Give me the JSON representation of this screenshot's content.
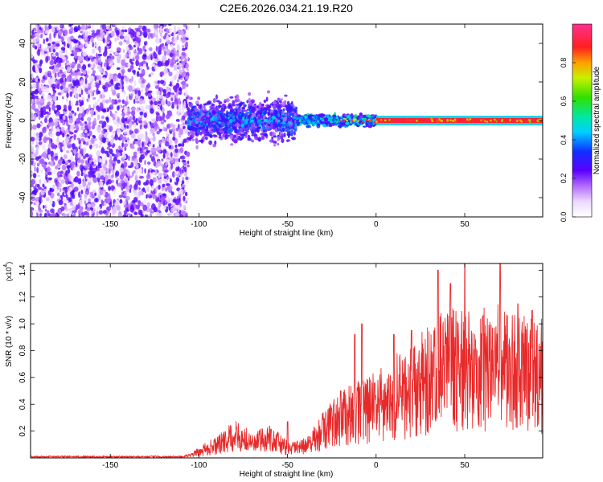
{
  "figure_title": "C2E6.2026.034.21.19.R20",
  "colorbar": {
    "label": "Normalized spectral amplitude",
    "ticks": [
      "0.0",
      "0.2",
      "0.4",
      "0.6",
      "0.8"
    ]
  },
  "chart_data": [
    {
      "type": "heatmap",
      "title": "C2E6.2026.034.21.19.R20",
      "xlabel": "Height of straight line (km)",
      "ylabel": "Frequency (Hz)",
      "xlim": [
        -195,
        94
      ],
      "ylim": [
        -50,
        50
      ],
      "xticks": [
        "-150",
        "-100",
        "-50",
        "0",
        "50"
      ],
      "yticks": [
        "-40",
        "-20",
        "0",
        "20",
        "40"
      ],
      "zlabel": "Normalized spectral amplitude",
      "zlim": [
        0,
        1
      ],
      "description_regions": [
        {
          "x_range": [
            -195,
            -106
          ],
          "y_range": [
            -50,
            50
          ],
          "amplitude": 0.12
        },
        {
          "x_range": [
            -106,
            -45
          ],
          "y_range": [
            -12,
            10
          ],
          "amplitude": 0.3
        },
        {
          "x_range": [
            -45,
            0
          ],
          "y_range": [
            -4,
            4
          ],
          "amplitude": 0.45
        },
        {
          "x_range": [
            0,
            94
          ],
          "y_range": [
            -1.5,
            1.5
          ],
          "amplitude": 0.98
        }
      ]
    },
    {
      "type": "line",
      "xlabel": "Height of straight line (km)",
      "ylabel": "SNR (10 * v/v)",
      "y_scale_label": "(x10",
      "y_scale_exp": "4",
      "xlim": [
        -195,
        94
      ],
      "ylim": [
        0,
        1.45
      ],
      "xticks": [
        "-150",
        "-100",
        "-50",
        "0",
        "50"
      ],
      "yticks": [
        "0.2",
        "0.4",
        "0.6",
        "0.8",
        "1.0",
        "1.2",
        "1.4"
      ],
      "series": [
        {
          "name": "SNR",
          "color": "#e8292a",
          "x": [
            -195,
            -180,
            -160,
            -140,
            -120,
            -110,
            -105,
            -100,
            -95,
            -90,
            -85,
            -80,
            -75,
            -70,
            -65,
            -60,
            -55,
            -50,
            -45,
            -40,
            -35,
            -30,
            -25,
            -20,
            -15,
            -10,
            -5,
            0,
            5,
            10,
            15,
            20,
            25,
            30,
            35,
            40,
            45,
            50,
            55,
            60,
            65,
            70,
            75,
            80,
            85,
            90,
            94
          ],
          "values": [
            0.01,
            0.01,
            0.01,
            0.01,
            0.01,
            0.01,
            0.02,
            0.05,
            0.08,
            0.1,
            0.14,
            0.18,
            0.16,
            0.12,
            0.14,
            0.18,
            0.12,
            0.08,
            0.08,
            0.1,
            0.15,
            0.22,
            0.28,
            0.32,
            0.35,
            0.38,
            0.4,
            0.42,
            0.45,
            0.5,
            0.52,
            0.55,
            0.6,
            0.65,
            0.7,
            0.72,
            0.72,
            0.75,
            0.72,
            0.75,
            0.72,
            0.75,
            0.7,
            0.72,
            0.68,
            0.7,
            0.72
          ],
          "peaks": [
            [
              -50,
              0.27
            ],
            [
              -20,
              0.5
            ],
            [
              -12,
              0.92
            ],
            [
              -8,
              1.0
            ],
            [
              10,
              0.92
            ],
            [
              20,
              0.95
            ],
            [
              35,
              1.4
            ],
            [
              42,
              1.3
            ],
            [
              50,
              1.45
            ],
            [
              60,
              1.05
            ],
            [
              70,
              1.45
            ],
            [
              80,
              1.15
            ],
            [
              88,
              1.1
            ]
          ]
        }
      ]
    }
  ]
}
